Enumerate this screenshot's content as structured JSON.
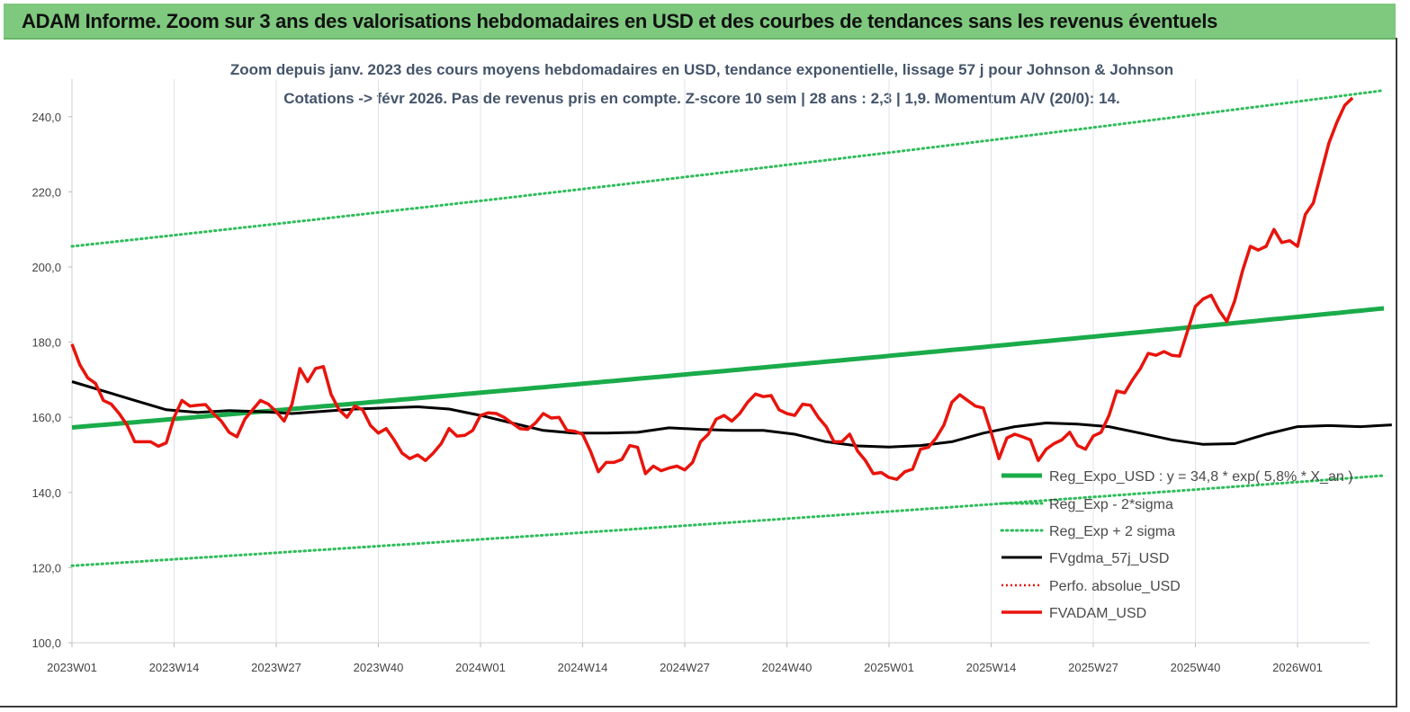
{
  "banner": {
    "title": "ADAM Informe. Zoom sur 3 ans des valorisations hebdomadaires en USD et des courbes de tendances sans les revenus éventuels"
  },
  "colors": {
    "banner_bg": "#7ec97e",
    "trend_green": "#1aab4a",
    "band_green": "#2ebd5a",
    "smooth_black": "#000000",
    "price_red": "#e8140c",
    "perf_red": "#e8140c"
  },
  "chart_data": {
    "type": "line",
    "title": "Zoom depuis janv. 2023 des cours moyens hebdomadaires en USD, tendance exponentielle, lissage 57 j pour Johnson & Johnson",
    "subtitle": "Cotations -> févr 2026.  Pas de revenus pris en compte. Z-score 10 sem  | 28 ans : 2,3  | 1,9. Momentum A/V (20/0): 14.",
    "ylim": [
      100,
      250
    ],
    "y_ticks": [
      "100,0",
      "120,0",
      "140,0",
      "160,0",
      "180,0",
      "200,0",
      "220,0",
      "240,0"
    ],
    "x_ticks": [
      "2023W01",
      "2023W14",
      "2023W27",
      "2023W40",
      "2024W01",
      "2024W14",
      "2024W27",
      "2024W40",
      "2025W01",
      "2025W14",
      "2025W27",
      "2025W40",
      "2026W01"
    ],
    "grid": "vertical",
    "legend_position": "bottom-right",
    "weeks": 167,
    "series": [
      {
        "name": "Reg_Expo_USD : y = 34,8 * exp( 5,8% * X_an )",
        "style": "solid-thick",
        "start": 157.3,
        "end": 189.0
      },
      {
        "name": "Reg_Exp - 2*sigma",
        "style": "dotted",
        "start": 120.5,
        "end": 144.5
      },
      {
        "name": "Reg_Exp + 2 sigma",
        "style": "dotted",
        "start": 205.5,
        "end": 247.0
      },
      {
        "name": "FVgdma_57j_USD",
        "style": "solid",
        "points": [
          [
            0,
            169.5
          ],
          [
            4,
            167
          ],
          [
            8,
            164.5
          ],
          [
            12,
            162
          ],
          [
            16,
            161.3
          ],
          [
            20,
            161.8
          ],
          [
            24,
            161.5
          ],
          [
            28,
            161.0
          ],
          [
            32,
            161.6
          ],
          [
            36,
            162.2
          ],
          [
            40,
            162.5
          ],
          [
            44,
            162.8
          ],
          [
            48,
            162.2
          ],
          [
            52,
            160.5
          ],
          [
            56,
            158.5
          ],
          [
            60,
            156.5
          ],
          [
            64,
            155.8
          ],
          [
            68,
            155.8
          ],
          [
            72,
            156.0
          ],
          [
            76,
            157.2
          ],
          [
            80,
            156.8
          ],
          [
            84,
            156.5
          ],
          [
            88,
            156.5
          ],
          [
            92,
            155.5
          ],
          [
            96,
            153.5
          ],
          [
            100,
            152.4
          ],
          [
            104,
            152.1
          ],
          [
            108,
            152.5
          ],
          [
            112,
            153.5
          ],
          [
            116,
            155.8
          ],
          [
            120,
            157.5
          ],
          [
            124,
            158.5
          ],
          [
            128,
            158.2
          ],
          [
            132,
            157.5
          ],
          [
            136,
            155.8
          ],
          [
            140,
            154.0
          ],
          [
            144,
            152.8
          ],
          [
            148,
            153.0
          ],
          [
            152,
            155.5
          ],
          [
            156,
            157.5
          ],
          [
            160,
            157.8
          ],
          [
            164,
            157.5
          ],
          [
            168,
            158.0
          ]
        ]
      },
      {
        "name": "Perfo. absolue_USD",
        "style": "dotted-red"
      },
      {
        "name": "FVADAM_USD",
        "style": "solid-thick-red",
        "points": [
          [
            0,
            179.5
          ],
          [
            1,
            174.0
          ],
          [
            2,
            170.5
          ],
          [
            3,
            169.0
          ],
          [
            4,
            164.5
          ],
          [
            5,
            163.5
          ],
          [
            6,
            161.0
          ],
          [
            7,
            158.0
          ],
          [
            8,
            153.5
          ],
          [
            9,
            153.5
          ],
          [
            10,
            153.5
          ],
          [
            11,
            152.3
          ],
          [
            12,
            153.2
          ],
          [
            13,
            160.0
          ],
          [
            14,
            164.5
          ],
          [
            15,
            163.0
          ],
          [
            16,
            163.2
          ],
          [
            17,
            163.4
          ],
          [
            18,
            161.0
          ],
          [
            19,
            159.0
          ],
          [
            20,
            156.0
          ],
          [
            21,
            154.8
          ],
          [
            22,
            159.5
          ],
          [
            23,
            162.0
          ],
          [
            24,
            164.5
          ],
          [
            25,
            163.5
          ],
          [
            26,
            161.5
          ],
          [
            27,
            159.0
          ],
          [
            28,
            163.5
          ],
          [
            29,
            173.0
          ],
          [
            30,
            169.5
          ],
          [
            31,
            173.0
          ],
          [
            32,
            173.5
          ],
          [
            33,
            166.0
          ],
          [
            34,
            162.0
          ],
          [
            35,
            160.0
          ],
          [
            36,
            163.0
          ],
          [
            37,
            162.0
          ],
          [
            38,
            157.8
          ],
          [
            39,
            155.8
          ],
          [
            40,
            157.0
          ],
          [
            41,
            154.0
          ],
          [
            42,
            150.5
          ],
          [
            43,
            149.0
          ],
          [
            44,
            150.0
          ],
          [
            45,
            148.5
          ],
          [
            46,
            150.5
          ],
          [
            47,
            153.0
          ],
          [
            48,
            157.0
          ],
          [
            49,
            155.0
          ],
          [
            50,
            155.2
          ],
          [
            51,
            156.5
          ],
          [
            52,
            160.5
          ],
          [
            53,
            161.2
          ],
          [
            54,
            161.0
          ],
          [
            55,
            160.0
          ],
          [
            56,
            158.5
          ],
          [
            57,
            157.0
          ],
          [
            58,
            156.8
          ],
          [
            59,
            158.5
          ],
          [
            60,
            161.0
          ],
          [
            61,
            159.8
          ],
          [
            62,
            160.0
          ],
          [
            63,
            156.5
          ],
          [
            64,
            156.3
          ],
          [
            65,
            155.5
          ],
          [
            66,
            151.0
          ],
          [
            67,
            145.5
          ],
          [
            68,
            148.0
          ],
          [
            69,
            148.0
          ],
          [
            70,
            148.8
          ],
          [
            71,
            152.5
          ],
          [
            72,
            152.0
          ],
          [
            73,
            145.0
          ],
          [
            74,
            147.0
          ],
          [
            75,
            145.8
          ],
          [
            76,
            146.5
          ],
          [
            77,
            147.0
          ],
          [
            78,
            146.0
          ],
          [
            79,
            148.0
          ],
          [
            80,
            153.5
          ],
          [
            81,
            155.5
          ],
          [
            82,
            159.5
          ],
          [
            83,
            160.5
          ],
          [
            84,
            159.0
          ],
          [
            85,
            161.0
          ],
          [
            86,
            164.0
          ],
          [
            87,
            166.2
          ],
          [
            88,
            165.5
          ],
          [
            89,
            165.8
          ],
          [
            90,
            162.0
          ],
          [
            91,
            161.0
          ],
          [
            92,
            160.5
          ],
          [
            93,
            163.5
          ],
          [
            94,
            163.2
          ],
          [
            95,
            160.0
          ],
          [
            96,
            157.5
          ],
          [
            97,
            153.5
          ],
          [
            98,
            153.5
          ],
          [
            99,
            155.5
          ],
          [
            100,
            151.0
          ],
          [
            101,
            148.5
          ],
          [
            102,
            145.0
          ],
          [
            103,
            145.3
          ],
          [
            104,
            144.0
          ],
          [
            105,
            143.5
          ],
          [
            106,
            145.5
          ],
          [
            107,
            146.2
          ],
          [
            108,
            151.5
          ],
          [
            109,
            152.0
          ],
          [
            110,
            154.5
          ],
          [
            111,
            158.0
          ],
          [
            112,
            164.0
          ],
          [
            113,
            166.0
          ],
          [
            114,
            164.5
          ],
          [
            115,
            163.0
          ],
          [
            116,
            162.5
          ],
          [
            117,
            156.0
          ],
          [
            118,
            149.0
          ],
          [
            119,
            154.5
          ],
          [
            120,
            155.5
          ],
          [
            121,
            154.8
          ],
          [
            122,
            154.0
          ],
          [
            123,
            148.5
          ],
          [
            124,
            151.5
          ],
          [
            125,
            153.0
          ],
          [
            126,
            154.0
          ],
          [
            127,
            156.0
          ],
          [
            128,
            152.5
          ],
          [
            129,
            151.5
          ],
          [
            130,
            155.0
          ],
          [
            131,
            156.0
          ],
          [
            132,
            160.5
          ],
          [
            133,
            167.0
          ],
          [
            134,
            166.5
          ],
          [
            135,
            170.0
          ],
          [
            136,
            173.0
          ],
          [
            137,
            177.0
          ],
          [
            138,
            176.5
          ],
          [
            139,
            177.5
          ],
          [
            140,
            176.5
          ],
          [
            141,
            176.3
          ],
          [
            142,
            183.0
          ],
          [
            143,
            189.5
          ],
          [
            144,
            191.5
          ],
          [
            145,
            192.5
          ],
          [
            146,
            188.5
          ],
          [
            147,
            185.5
          ],
          [
            148,
            191.0
          ],
          [
            149,
            199.0
          ],
          [
            150,
            205.5
          ],
          [
            151,
            204.5
          ],
          [
            152,
            205.5
          ],
          [
            153,
            210.0
          ],
          [
            154,
            206.5
          ],
          [
            155,
            207.0
          ],
          [
            156,
            205.5
          ],
          [
            157,
            214.0
          ],
          [
            158,
            217.0
          ],
          [
            159,
            225.0
          ],
          [
            160,
            233.0
          ],
          [
            161,
            238.5
          ],
          [
            162,
            243.0
          ],
          [
            163,
            245.0
          ]
        ]
      }
    ]
  }
}
